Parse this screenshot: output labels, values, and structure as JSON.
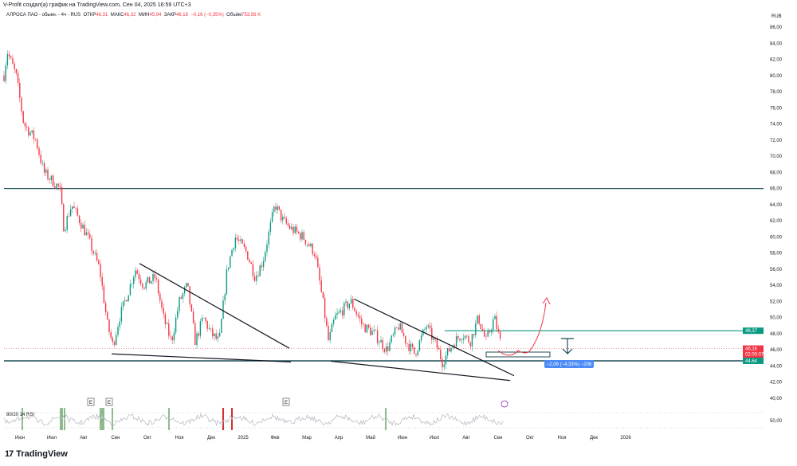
{
  "header": {
    "credit": "V-Profit создал(а) график на TradingView.com, Сен 04, 2025 16:59 UTC+3",
    "symbol": "АЛРОСА ПАО - обыкн. - 4ч - RUS",
    "open_label": "ОТКР",
    "open": "46,31",
    "high_label": "МАКС",
    "high": "46,32",
    "low_label": "МИН",
    "low": "45,94",
    "close_label": "ЗАКР",
    "close": "46,16",
    "change": "−0,16 (−0,35%)",
    "volume_label": "Объём",
    "volume": "753,56 K"
  },
  "colors": {
    "up": "#089981",
    "down": "#f23645",
    "level": "#1f4e5a",
    "teal": "#089981",
    "measure": "#4c8bf5",
    "rsi": "#b2b5be"
  },
  "chart_data": {
    "type": "candlestick",
    "currency": "RUB",
    "x_unit": "months since Jun 2024",
    "ylim": [
      39,
      87
    ],
    "y_ticks": [
      "86,00",
      "84,00",
      "82,00",
      "80,00",
      "78,00",
      "76,00",
      "74,00",
      "72,00",
      "70,00",
      "68,00",
      "66,00",
      "64,00",
      "62,00",
      "60,00",
      "58,00",
      "56,00",
      "54,00",
      "52,00",
      "50,00",
      "48,00",
      "46,00",
      "44,00",
      "42,00",
      "40,00"
    ],
    "x_ticks": [
      "Июн",
      "Июл",
      "Авг",
      "Сен",
      "Окт",
      "Ноя",
      "Дек",
      "2025",
      "Фев",
      "Мар",
      "Апр",
      "Май",
      "Июн",
      "Июл",
      "Авг",
      "Сен",
      "Окт",
      "Ноя",
      "Дек",
      "2026"
    ],
    "price_path": [
      [
        -0.5,
        80
      ],
      [
        -0.4,
        83
      ],
      [
        -0.12,
        80
      ],
      [
        0.12,
        74
      ],
      [
        0.5,
        72
      ],
      [
        0.75,
        68
      ],
      [
        1.25,
        66
      ],
      [
        1.38,
        61
      ],
      [
        1.62,
        64
      ],
      [
        1.88,
        62
      ],
      [
        2.12,
        60
      ],
      [
        2.5,
        56
      ],
      [
        2.75,
        49
      ],
      [
        2.92,
        46.5
      ],
      [
        3.12,
        50
      ],
      [
        3.38,
        53
      ],
      [
        3.62,
        56
      ],
      [
        3.88,
        54
      ],
      [
        4.25,
        55
      ],
      [
        4.5,
        50
      ],
      [
        4.75,
        47
      ],
      [
        5,
        52
      ],
      [
        5.25,
        54
      ],
      [
        5.5,
        47
      ],
      [
        5.75,
        50
      ],
      [
        6,
        48
      ],
      [
        6.25,
        47
      ],
      [
        6.5,
        56
      ],
      [
        6.75,
        60
      ],
      [
        7.12,
        58
      ],
      [
        7.38,
        55
      ],
      [
        7.62,
        57
      ],
      [
        8,
        64
      ],
      [
        8.25,
        62
      ],
      [
        8.5,
        61
      ],
      [
        8.88,
        60
      ],
      [
        9.25,
        58
      ],
      [
        9.5,
        52
      ],
      [
        9.68,
        47
      ],
      [
        9.88,
        50
      ],
      [
        10.38,
        52
      ],
      [
        10.75,
        49
      ],
      [
        11.12,
        48
      ],
      [
        11.5,
        46
      ],
      [
        11.88,
        49
      ],
      [
        12.12,
        47
      ],
      [
        12.38,
        45.5
      ],
      [
        12.75,
        49
      ],
      [
        13.12,
        46
      ],
      [
        13.25,
        44.5
      ],
      [
        13.62,
        47
      ],
      [
        13.88,
        48
      ],
      [
        14.12,
        47
      ],
      [
        14.38,
        50
      ],
      [
        14.62,
        47
      ],
      [
        14.88,
        50
      ],
      [
        15.12,
        46.16
      ]
    ],
    "horizontal_levels": [
      66.0,
      48.37,
      44.64
    ],
    "level_labels": {
      "resistance": "48,37",
      "support": "44,64"
    },
    "last_price": "46,16",
    "countdown": "02:00:07",
    "trendlines": [
      {
        "from": [
          3.75,
          56.7
        ],
        "to": [
          8.45,
          46.2
        ]
      },
      {
        "from": [
          2.88,
          45.5
        ],
        "to": [
          8.5,
          44.5
        ]
      },
      {
        "from": [
          10.48,
          52.3
        ],
        "to": [
          15.5,
          42.8
        ]
      },
      {
        "from": [
          9.75,
          44.6
        ],
        "to": [
          15.38,
          42.2
        ]
      }
    ],
    "measure_label": "−2,06 (−4,33%) −206",
    "rsi": {
      "label": "80/20 14 RSI",
      "tick": "50,00",
      "upper": 80,
      "lower": 20
    },
    "event_markers": [
      "E",
      "E",
      "E"
    ]
  },
  "footer": {
    "logo_text": "TradingView",
    "logo_mark": "17"
  }
}
